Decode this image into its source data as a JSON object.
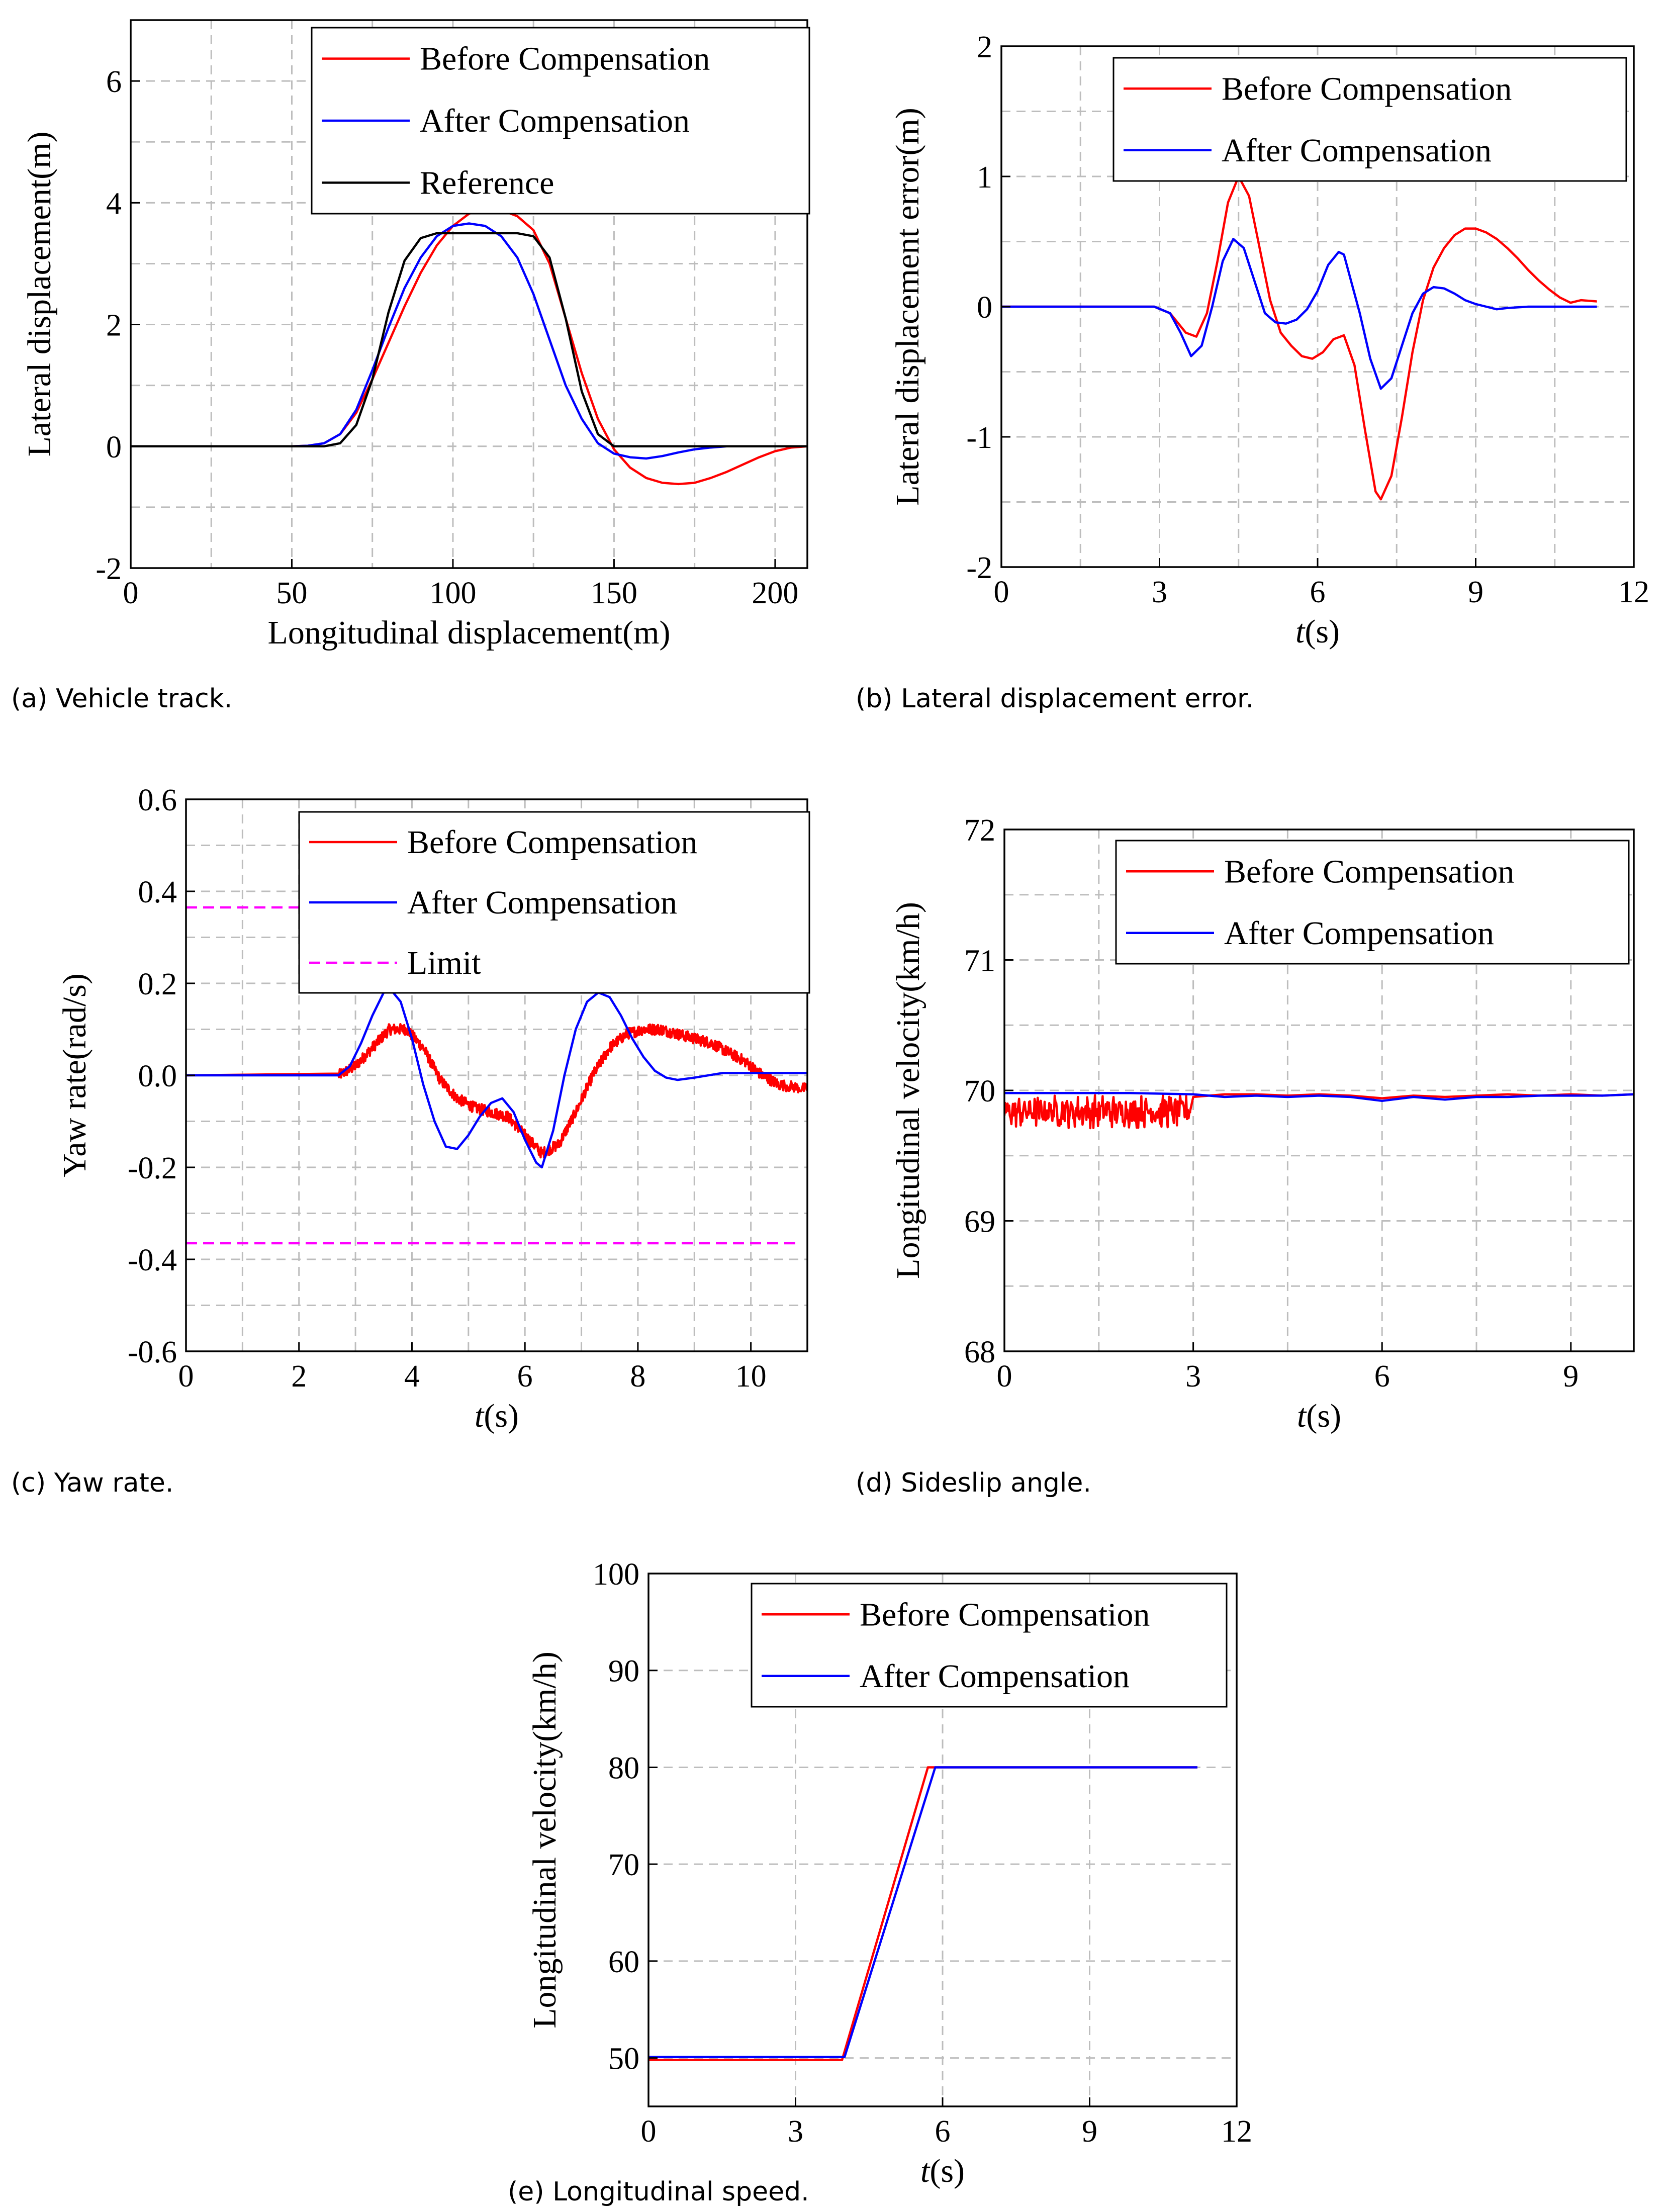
{
  "colors": {
    "before": "#ff0000",
    "after": "#0000ff",
    "reference": "#000000",
    "limit": "#ff00ff"
  },
  "chart_data": [
    {
      "id": "a",
      "type": "line",
      "caption": "(a) Vehicle track.",
      "xlabel": "Longitudinal displacement(m)",
      "ylabel": "Lateral displacement(m)",
      "xlim": [
        0,
        210
      ],
      "ylim": [
        -2,
        7
      ],
      "xticks": [
        0,
        50,
        100,
        150,
        200
      ],
      "xtick_labels": [
        "0",
        "50",
        "100",
        "150",
        "200"
      ],
      "yticks": [
        -2,
        0,
        2,
        4,
        6
      ],
      "ytick_labels": [
        "-2",
        "0",
        "2",
        "4",
        "6"
      ],
      "xgrid": [
        25,
        50,
        75,
        100,
        125,
        150,
        175,
        200
      ],
      "ygrid": [
        -1,
        0,
        1,
        2,
        3,
        4,
        5,
        6
      ],
      "legend_position": "top-right",
      "series": [
        {
          "name": "Before Compensation",
          "color": "before",
          "dash": "",
          "x": [
            0,
            50,
            55,
            60,
            65,
            70,
            75,
            80,
            85,
            90,
            95,
            100,
            105,
            110,
            115,
            120,
            125,
            130,
            135,
            140,
            145,
            150,
            155,
            160,
            165,
            170,
            175,
            180,
            185,
            190,
            195,
            200,
            205,
            210
          ],
          "y": [
            0,
            0,
            0.01,
            0.05,
            0.2,
            0.55,
            1.1,
            1.7,
            2.3,
            2.85,
            3.3,
            3.62,
            3.82,
            3.9,
            3.88,
            3.78,
            3.55,
            3.0,
            2.1,
            1.2,
            0.45,
            -0.05,
            -0.35,
            -0.52,
            -0.6,
            -0.62,
            -0.6,
            -0.52,
            -0.42,
            -0.3,
            -0.18,
            -0.08,
            -0.02,
            0
          ]
        },
        {
          "name": "After Compensation",
          "color": "after",
          "dash": "",
          "x": [
            0,
            50,
            55,
            60,
            65,
            70,
            75,
            80,
            85,
            90,
            95,
            100,
            105,
            110,
            115,
            120,
            125,
            130,
            135,
            140,
            145,
            150,
            155,
            160,
            165,
            170,
            175,
            180,
            185,
            190,
            200,
            210
          ],
          "y": [
            0,
            0,
            0.01,
            0.05,
            0.2,
            0.6,
            1.25,
            1.95,
            2.6,
            3.1,
            3.45,
            3.62,
            3.66,
            3.62,
            3.45,
            3.1,
            2.5,
            1.75,
            1.0,
            0.45,
            0.05,
            -0.12,
            -0.18,
            -0.2,
            -0.16,
            -0.1,
            -0.05,
            -0.02,
            0,
            0,
            0,
            0
          ]
        },
        {
          "name": "Reference",
          "color": "reference",
          "dash": "",
          "x": [
            0,
            55,
            60,
            65,
            70,
            75,
            80,
            85,
            90,
            95,
            100,
            110,
            120,
            125,
            130,
            135,
            140,
            145,
            150,
            210
          ],
          "y": [
            0,
            0,
            0,
            0.05,
            0.35,
            1.1,
            2.2,
            3.05,
            3.42,
            3.5,
            3.5,
            3.5,
            3.5,
            3.45,
            3.1,
            2.1,
            0.9,
            0.2,
            0,
            0
          ]
        }
      ]
    },
    {
      "id": "b",
      "type": "line",
      "caption": "(b) Lateral displacement error.",
      "xlabel": "t(s)",
      "ylabel": "Lateral displacement error(m)",
      "xlim": [
        0,
        12
      ],
      "ylim": [
        -2,
        2
      ],
      "xticks": [
        0,
        3,
        6,
        9,
        12
      ],
      "xtick_labels": [
        "0",
        "3",
        "6",
        "9",
        "12"
      ],
      "yticks": [
        -2,
        -1,
        0,
        1,
        2
      ],
      "ytick_labels": [
        "-2",
        "-1",
        "0",
        "1",
        "2"
      ],
      "xgrid": [
        1.5,
        3,
        4.5,
        6,
        7.5,
        9,
        10.5
      ],
      "ygrid": [
        -1.5,
        -1,
        -0.5,
        0,
        0.5,
        1,
        1.5
      ],
      "legend_position": "top-right",
      "series": [
        {
          "name": "Before Compensation",
          "color": "before",
          "dash": "",
          "x": [
            0,
            2.9,
            3.2,
            3.5,
            3.7,
            3.9,
            4.1,
            4.3,
            4.5,
            4.7,
            4.9,
            5.1,
            5.3,
            5.5,
            5.7,
            5.9,
            6.1,
            6.3,
            6.5,
            6.7,
            6.9,
            7.1,
            7.2,
            7.4,
            7.6,
            7.8,
            8.0,
            8.2,
            8.4,
            8.6,
            8.8,
            9.0,
            9.2,
            9.4,
            9.6,
            9.8,
            10.0,
            10.2,
            10.4,
            10.6,
            10.8,
            10.9,
            11.0,
            11.3
          ],
          "y": [
            0,
            0,
            -0.05,
            -0.2,
            -0.23,
            -0.05,
            0.35,
            0.8,
            1.0,
            0.85,
            0.45,
            0.05,
            -0.2,
            -0.3,
            -0.38,
            -0.4,
            -0.35,
            -0.25,
            -0.22,
            -0.45,
            -0.95,
            -1.42,
            -1.48,
            -1.3,
            -0.85,
            -0.35,
            0.05,
            0.3,
            0.45,
            0.55,
            0.6,
            0.6,
            0.57,
            0.52,
            0.45,
            0.37,
            0.28,
            0.2,
            0.13,
            0.07,
            0.03,
            0.04,
            0.05,
            0.04
          ]
        },
        {
          "name": "After Compensation",
          "color": "after",
          "dash": "",
          "x": [
            0,
            2.9,
            3.2,
            3.4,
            3.6,
            3.8,
            4.0,
            4.2,
            4.4,
            4.6,
            4.8,
            5.0,
            5.2,
            5.4,
            5.6,
            5.8,
            6.0,
            6.2,
            6.4,
            6.5,
            6.6,
            6.8,
            7.0,
            7.2,
            7.4,
            7.6,
            7.8,
            8.0,
            8.2,
            8.4,
            8.6,
            8.8,
            9.0,
            9.2,
            9.4,
            9.6,
            10.0,
            10.5,
            11.3
          ],
          "y": [
            0,
            0,
            -0.05,
            -0.2,
            -0.38,
            -0.3,
            0.0,
            0.35,
            0.52,
            0.45,
            0.2,
            -0.05,
            -0.12,
            -0.13,
            -0.1,
            -0.02,
            0.12,
            0.32,
            0.42,
            0.4,
            0.25,
            -0.05,
            -0.4,
            -0.63,
            -0.55,
            -0.3,
            -0.05,
            0.1,
            0.15,
            0.14,
            0.1,
            0.05,
            0.02,
            0.0,
            -0.02,
            -0.01,
            0,
            0,
            0
          ]
        }
      ]
    },
    {
      "id": "c",
      "type": "line",
      "caption": "(c) Yaw rate.",
      "xlabel": "t(s)",
      "ylabel": "Yaw rate(rad/s)",
      "xlim": [
        0,
        11
      ],
      "ylim": [
        -0.6,
        0.6
      ],
      "xticks": [
        0,
        2,
        4,
        6,
        8,
        10
      ],
      "xtick_labels": [
        "0",
        "2",
        "4",
        "6",
        "8",
        "10"
      ],
      "yticks": [
        -0.6,
        -0.4,
        -0.2,
        0.0,
        0.2,
        0.4,
        0.6
      ],
      "ytick_labels": [
        "-0.6",
        "-0.4",
        "-0.2",
        "0.0",
        "0.2",
        "0.4",
        "0.6"
      ],
      "xgrid": [
        1,
        2,
        3,
        4,
        5,
        6,
        7,
        8,
        9,
        10
      ],
      "ygrid": [
        -0.5,
        -0.4,
        -0.3,
        -0.2,
        -0.1,
        0.0,
        0.1,
        0.2,
        0.3,
        0.4,
        0.5
      ],
      "legend_position": "top-right",
      "series": [
        {
          "name": "Before Compensation",
          "color": "before",
          "dash": "",
          "noise": 0.012,
          "x": [
            0,
            2.7,
            3.0,
            3.3,
            3.6,
            3.9,
            4.2,
            4.5,
            4.8,
            5.1,
            5.4,
            5.7,
            6.0,
            6.3,
            6.6,
            6.9,
            7.2,
            7.5,
            7.8,
            8.1,
            8.4,
            8.7,
            9.0,
            9.3,
            9.6,
            9.9,
            10.2,
            10.5,
            11.0
          ],
          "y": [
            0,
            0,
            0.02,
            0.06,
            0.1,
            0.1,
            0.06,
            -0.01,
            -0.05,
            -0.07,
            -0.08,
            -0.09,
            -0.13,
            -0.17,
            -0.15,
            -0.08,
            0.0,
            0.06,
            0.09,
            0.1,
            0.1,
            0.09,
            0.08,
            0.07,
            0.05,
            0.03,
            0.0,
            -0.02,
            -0.03
          ]
        },
        {
          "name": "After Compensation",
          "color": "after",
          "dash": "",
          "x": [
            0,
            2.7,
            2.9,
            3.1,
            3.3,
            3.5,
            3.6,
            3.8,
            4.0,
            4.2,
            4.4,
            4.6,
            4.8,
            5.0,
            5.2,
            5.4,
            5.6,
            5.8,
            6.0,
            6.2,
            6.3,
            6.5,
            6.7,
            6.9,
            7.1,
            7.3,
            7.5,
            7.7,
            7.9,
            8.1,
            8.3,
            8.5,
            8.7,
            9.0,
            9.5,
            10.0,
            10.5,
            11.0
          ],
          "y": [
            0,
            0,
            0.02,
            0.07,
            0.13,
            0.18,
            0.19,
            0.16,
            0.08,
            -0.02,
            -0.1,
            -0.155,
            -0.16,
            -0.13,
            -0.09,
            -0.06,
            -0.05,
            -0.08,
            -0.14,
            -0.19,
            -0.2,
            -0.12,
            0.0,
            0.1,
            0.16,
            0.18,
            0.17,
            0.13,
            0.08,
            0.04,
            0.01,
            -0.005,
            -0.01,
            -0.005,
            0.005,
            0.005,
            0.005,
            0.005
          ]
        },
        {
          "name": "Limit",
          "color": "limit",
          "dash": "22 12",
          "x": [
            0,
            10.8
          ],
          "y": [
            0.365,
            0.365
          ]
        },
        {
          "name": "",
          "color": "limit",
          "dash": "22 12",
          "x": [
            0,
            10.8
          ],
          "y": [
            -0.365,
            -0.365
          ]
        }
      ]
    },
    {
      "id": "d",
      "type": "line",
      "caption": "(d) Sideslip angle.",
      "xlabel": "t(s)",
      "ylabel": "Longitudinal velocity(km/h)",
      "xlim": [
        0,
        10
      ],
      "ylim": [
        68,
        72
      ],
      "xticks": [
        0,
        3,
        6,
        9
      ],
      "xtick_labels": [
        "0",
        "3",
        "6",
        "9"
      ],
      "yticks": [
        68,
        69,
        70,
        71,
        72
      ],
      "ytick_labels": [
        "68",
        "69",
        "70",
        "71",
        "72"
      ],
      "xgrid": [
        1.5,
        3,
        4.5,
        6,
        7.5,
        9
      ],
      "ygrid": [
        68.5,
        69,
        69.5,
        70,
        70.5,
        71,
        71.5
      ],
      "legend_position": "top-right",
      "series": [
        {
          "name": "Before Compensation",
          "color": "before",
          "dash": "",
          "noise_segment": [
            0,
            2.95
          ],
          "noise": 0.13,
          "noise_center": 69.84,
          "x": [
            0,
            2.95,
            3.0,
            3.5,
            4.0,
            4.5,
            5.0,
            5.5,
            6.0,
            6.5,
            7.0,
            7.5,
            8.0,
            8.5,
            9.0,
            9.5,
            10.0
          ],
          "y": [
            69.84,
            69.84,
            69.95,
            69.97,
            69.97,
            69.96,
            69.97,
            69.96,
            69.94,
            69.96,
            69.95,
            69.96,
            69.97,
            69.96,
            69.97,
            69.96,
            69.97
          ]
        },
        {
          "name": "After Compensation",
          "color": "after",
          "dash": "",
          "x": [
            0,
            1,
            2,
            3,
            3.5,
            4,
            4.5,
            5,
            5.5,
            6,
            6.5,
            7,
            7.5,
            8,
            8.5,
            9,
            9.5,
            10
          ],
          "y": [
            69.98,
            69.98,
            69.98,
            69.97,
            69.95,
            69.96,
            69.95,
            69.96,
            69.95,
            69.92,
            69.95,
            69.93,
            69.95,
            69.95,
            69.96,
            69.96,
            69.96,
            69.97
          ]
        }
      ]
    },
    {
      "id": "e",
      "type": "line",
      "caption": "(e) Longitudinal speed.",
      "xlabel": "t(s)",
      "ylabel": "Longitudinal velocity(km/h)",
      "xlim": [
        0,
        12
      ],
      "ylim": [
        45,
        100
      ],
      "xticks": [
        0,
        3,
        6,
        9,
        12
      ],
      "xtick_labels": [
        "0",
        "3",
        "6",
        "9",
        "12"
      ],
      "yticks": [
        50,
        60,
        70,
        80,
        90,
        100
      ],
      "ytick_labels": [
        "50",
        "60",
        "70",
        "80",
        "90",
        "100"
      ],
      "xgrid": [
        3,
        6,
        9
      ],
      "ygrid": [
        50,
        60,
        70,
        80,
        90
      ],
      "legend_position": "top-right",
      "series": [
        {
          "name": "Before Compensation",
          "color": "before",
          "dash": "",
          "x": [
            0,
            3.95,
            5.7,
            11.2
          ],
          "y": [
            49.8,
            49.8,
            80,
            80
          ]
        },
        {
          "name": "After Compensation",
          "color": "after",
          "dash": "",
          "x": [
            0,
            4.0,
            5.85,
            11.2
          ],
          "y": [
            50.1,
            50.1,
            80,
            80
          ]
        }
      ]
    }
  ]
}
